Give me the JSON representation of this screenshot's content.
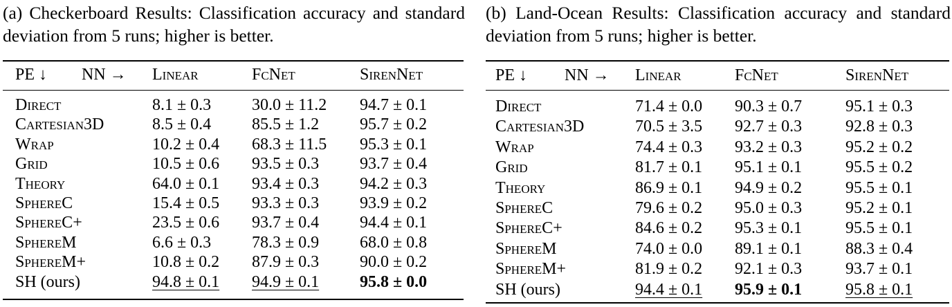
{
  "tables": [
    {
      "caption": "(a) Checkerboard Results: Classification accuracy and standard deviation from 5 runs; higher is better.",
      "header": {
        "pe": "PE ↓",
        "nn": "NN →",
        "cols": [
          "Linear",
          "FcNet",
          "SirenNet"
        ]
      },
      "rows": [
        {
          "label": "Direct",
          "smallcaps": true,
          "cells": [
            {
              "value": "8.1 ± 0.3"
            },
            {
              "value": "30.0 ± 11.2"
            },
            {
              "value": "94.7 ± 0.1"
            }
          ]
        },
        {
          "label": "Cartesian3D",
          "smallcaps": true,
          "cells": [
            {
              "value": "8.5 ± 0.4"
            },
            {
              "value": "85.5 ± 1.2"
            },
            {
              "value": "95.7 ± 0.2"
            }
          ]
        },
        {
          "label": "Wrap",
          "smallcaps": true,
          "cells": [
            {
              "value": "10.2 ± 0.4"
            },
            {
              "value": "68.3 ± 11.5"
            },
            {
              "value": "95.3 ± 0.1"
            }
          ]
        },
        {
          "label": "Grid",
          "smallcaps": true,
          "cells": [
            {
              "value": "10.5 ± 0.6"
            },
            {
              "value": "93.5 ± 0.3"
            },
            {
              "value": "93.7 ± 0.4"
            }
          ]
        },
        {
          "label": "Theory",
          "smallcaps": true,
          "cells": [
            {
              "value": "64.0 ± 0.1"
            },
            {
              "value": "93.4 ± 0.3"
            },
            {
              "value": "94.2 ± 0.3"
            }
          ]
        },
        {
          "label": "SphereC",
          "smallcaps": true,
          "cells": [
            {
              "value": "15.4 ± 0.5"
            },
            {
              "value": "93.3 ± 0.3"
            },
            {
              "value": "93.9 ± 0.2"
            }
          ]
        },
        {
          "label": "SphereC+",
          "smallcaps": true,
          "cells": [
            {
              "value": "23.5 ± 0.6"
            },
            {
              "value": "93.7 ± 0.4"
            },
            {
              "value": "94.4 ± 0.1"
            }
          ]
        },
        {
          "label": "SphereM",
          "smallcaps": true,
          "cells": [
            {
              "value": "6.6 ± 0.3"
            },
            {
              "value": "78.3 ± 0.9"
            },
            {
              "value": "68.0 ± 0.8"
            }
          ]
        },
        {
          "label": "SphereM+",
          "smallcaps": true,
          "cells": [
            {
              "value": "10.8 ± 0.2"
            },
            {
              "value": "87.9 ± 0.3"
            },
            {
              "value": "90.0 ± 0.2"
            }
          ]
        },
        {
          "label": "SH (ours)",
          "smallcaps": false,
          "cells": [
            {
              "value": "94.8 ± 0.1",
              "underline": true
            },
            {
              "value": "94.9 ± 0.1",
              "underline": true
            },
            {
              "value": "95.8 ± 0.0",
              "bold": true
            }
          ]
        }
      ]
    },
    {
      "caption": "(b) Land-Ocean Results: Classification accuracy and standard deviation from 5 runs; higher is better.",
      "header": {
        "pe": "PE ↓",
        "nn": "NN →",
        "cols": [
          "Linear",
          "FcNet",
          "SirenNet"
        ]
      },
      "rows": [
        {
          "label": "Direct",
          "smallcaps": true,
          "cells": [
            {
              "value": "71.4 ± 0.0"
            },
            {
              "value": "90.3 ± 0.7"
            },
            {
              "value": "95.1 ± 0.3"
            }
          ]
        },
        {
          "label": "Cartesian3D",
          "smallcaps": true,
          "cells": [
            {
              "value": "70.5 ± 3.5"
            },
            {
              "value": "92.7 ± 0.3"
            },
            {
              "value": "92.8 ± 0.3"
            }
          ]
        },
        {
          "label": "Wrap",
          "smallcaps": true,
          "cells": [
            {
              "value": "74.4 ± 0.3"
            },
            {
              "value": "93.2 ± 0.3"
            },
            {
              "value": "95.2 ± 0.2"
            }
          ]
        },
        {
          "label": "Grid",
          "smallcaps": true,
          "cells": [
            {
              "value": "81.7 ± 0.1"
            },
            {
              "value": "95.1 ± 0.1"
            },
            {
              "value": "95.5 ± 0.2"
            }
          ]
        },
        {
          "label": "Theory",
          "smallcaps": true,
          "cells": [
            {
              "value": "86.9 ± 0.1"
            },
            {
              "value": "94.9 ± 0.2"
            },
            {
              "value": "95.5 ± 0.1"
            }
          ]
        },
        {
          "label": "SphereC",
          "smallcaps": true,
          "cells": [
            {
              "value": "79.6 ± 0.2"
            },
            {
              "value": "95.0 ± 0.3"
            },
            {
              "value": "95.2 ± 0.1"
            }
          ]
        },
        {
          "label": "SphereC+",
          "smallcaps": true,
          "cells": [
            {
              "value": "84.6 ± 0.2"
            },
            {
              "value": "95.3 ± 0.1"
            },
            {
              "value": "95.5 ± 0.1"
            }
          ]
        },
        {
          "label": "SphereM",
          "smallcaps": true,
          "cells": [
            {
              "value": "74.0 ± 0.0"
            },
            {
              "value": "89.1 ± 0.1"
            },
            {
              "value": "88.3 ± 0.4"
            }
          ]
        },
        {
          "label": "SphereM+",
          "smallcaps": true,
          "cells": [
            {
              "value": "81.9 ± 0.2"
            },
            {
              "value": "92.1 ± 0.3"
            },
            {
              "value": "93.7 ± 0.1"
            }
          ]
        },
        {
          "label": "SH (ours)",
          "smallcaps": false,
          "cells": [
            {
              "value": "94.4 ± 0.1",
              "underline": true
            },
            {
              "value": "95.9 ± 0.1",
              "bold": true
            },
            {
              "value": "95.8 ± 0.1",
              "underline": true
            }
          ]
        }
      ]
    }
  ]
}
